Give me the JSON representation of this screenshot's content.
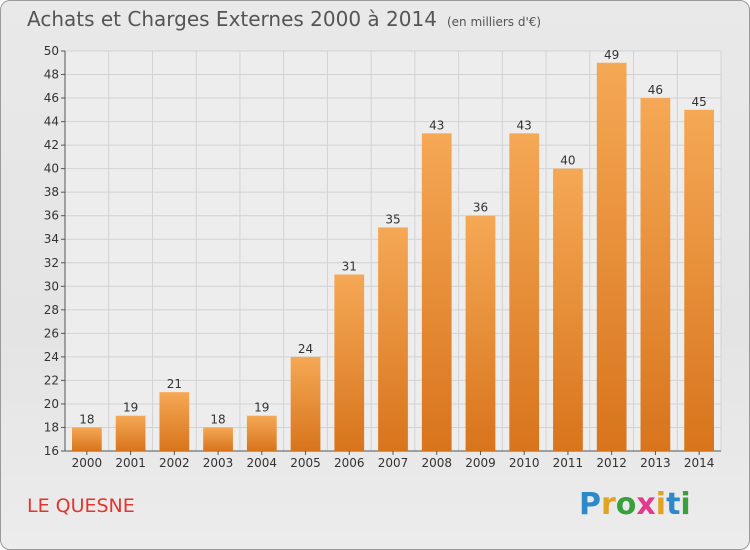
{
  "title": "Achats et Charges Externes 2000 à 2014",
  "subtitle": "(en milliers d'€)",
  "commune": "LE QUESNE",
  "logo": {
    "letters": [
      "P",
      "r",
      "o",
      "x",
      "i",
      "t",
      "i"
    ],
    "colors": [
      "#2b8ac7",
      "#e3a322",
      "#3a9f3d",
      "#e23a8c",
      "#e3a322",
      "#2b8ac7",
      "#3a9f3d"
    ]
  },
  "chart_data": {
    "type": "bar",
    "title": "Achats et Charges Externes 2000 à 2014",
    "subtitle": "(en milliers d'€)",
    "categories": [
      "2000",
      "2001",
      "2002",
      "2003",
      "2004",
      "2005",
      "2006",
      "2007",
      "2008",
      "2009",
      "2010",
      "2011",
      "2012",
      "2013",
      "2014"
    ],
    "values": [
      18,
      19,
      21,
      18,
      19,
      24,
      31,
      35,
      43,
      36,
      43,
      40,
      49,
      46,
      45
    ],
    "ylim": [
      16,
      50
    ],
    "yticks": [
      16,
      18,
      20,
      22,
      24,
      26,
      28,
      30,
      32,
      34,
      36,
      38,
      40,
      42,
      44,
      46,
      48,
      50
    ],
    "grid": true,
    "bar_color": "#f0923a"
  }
}
